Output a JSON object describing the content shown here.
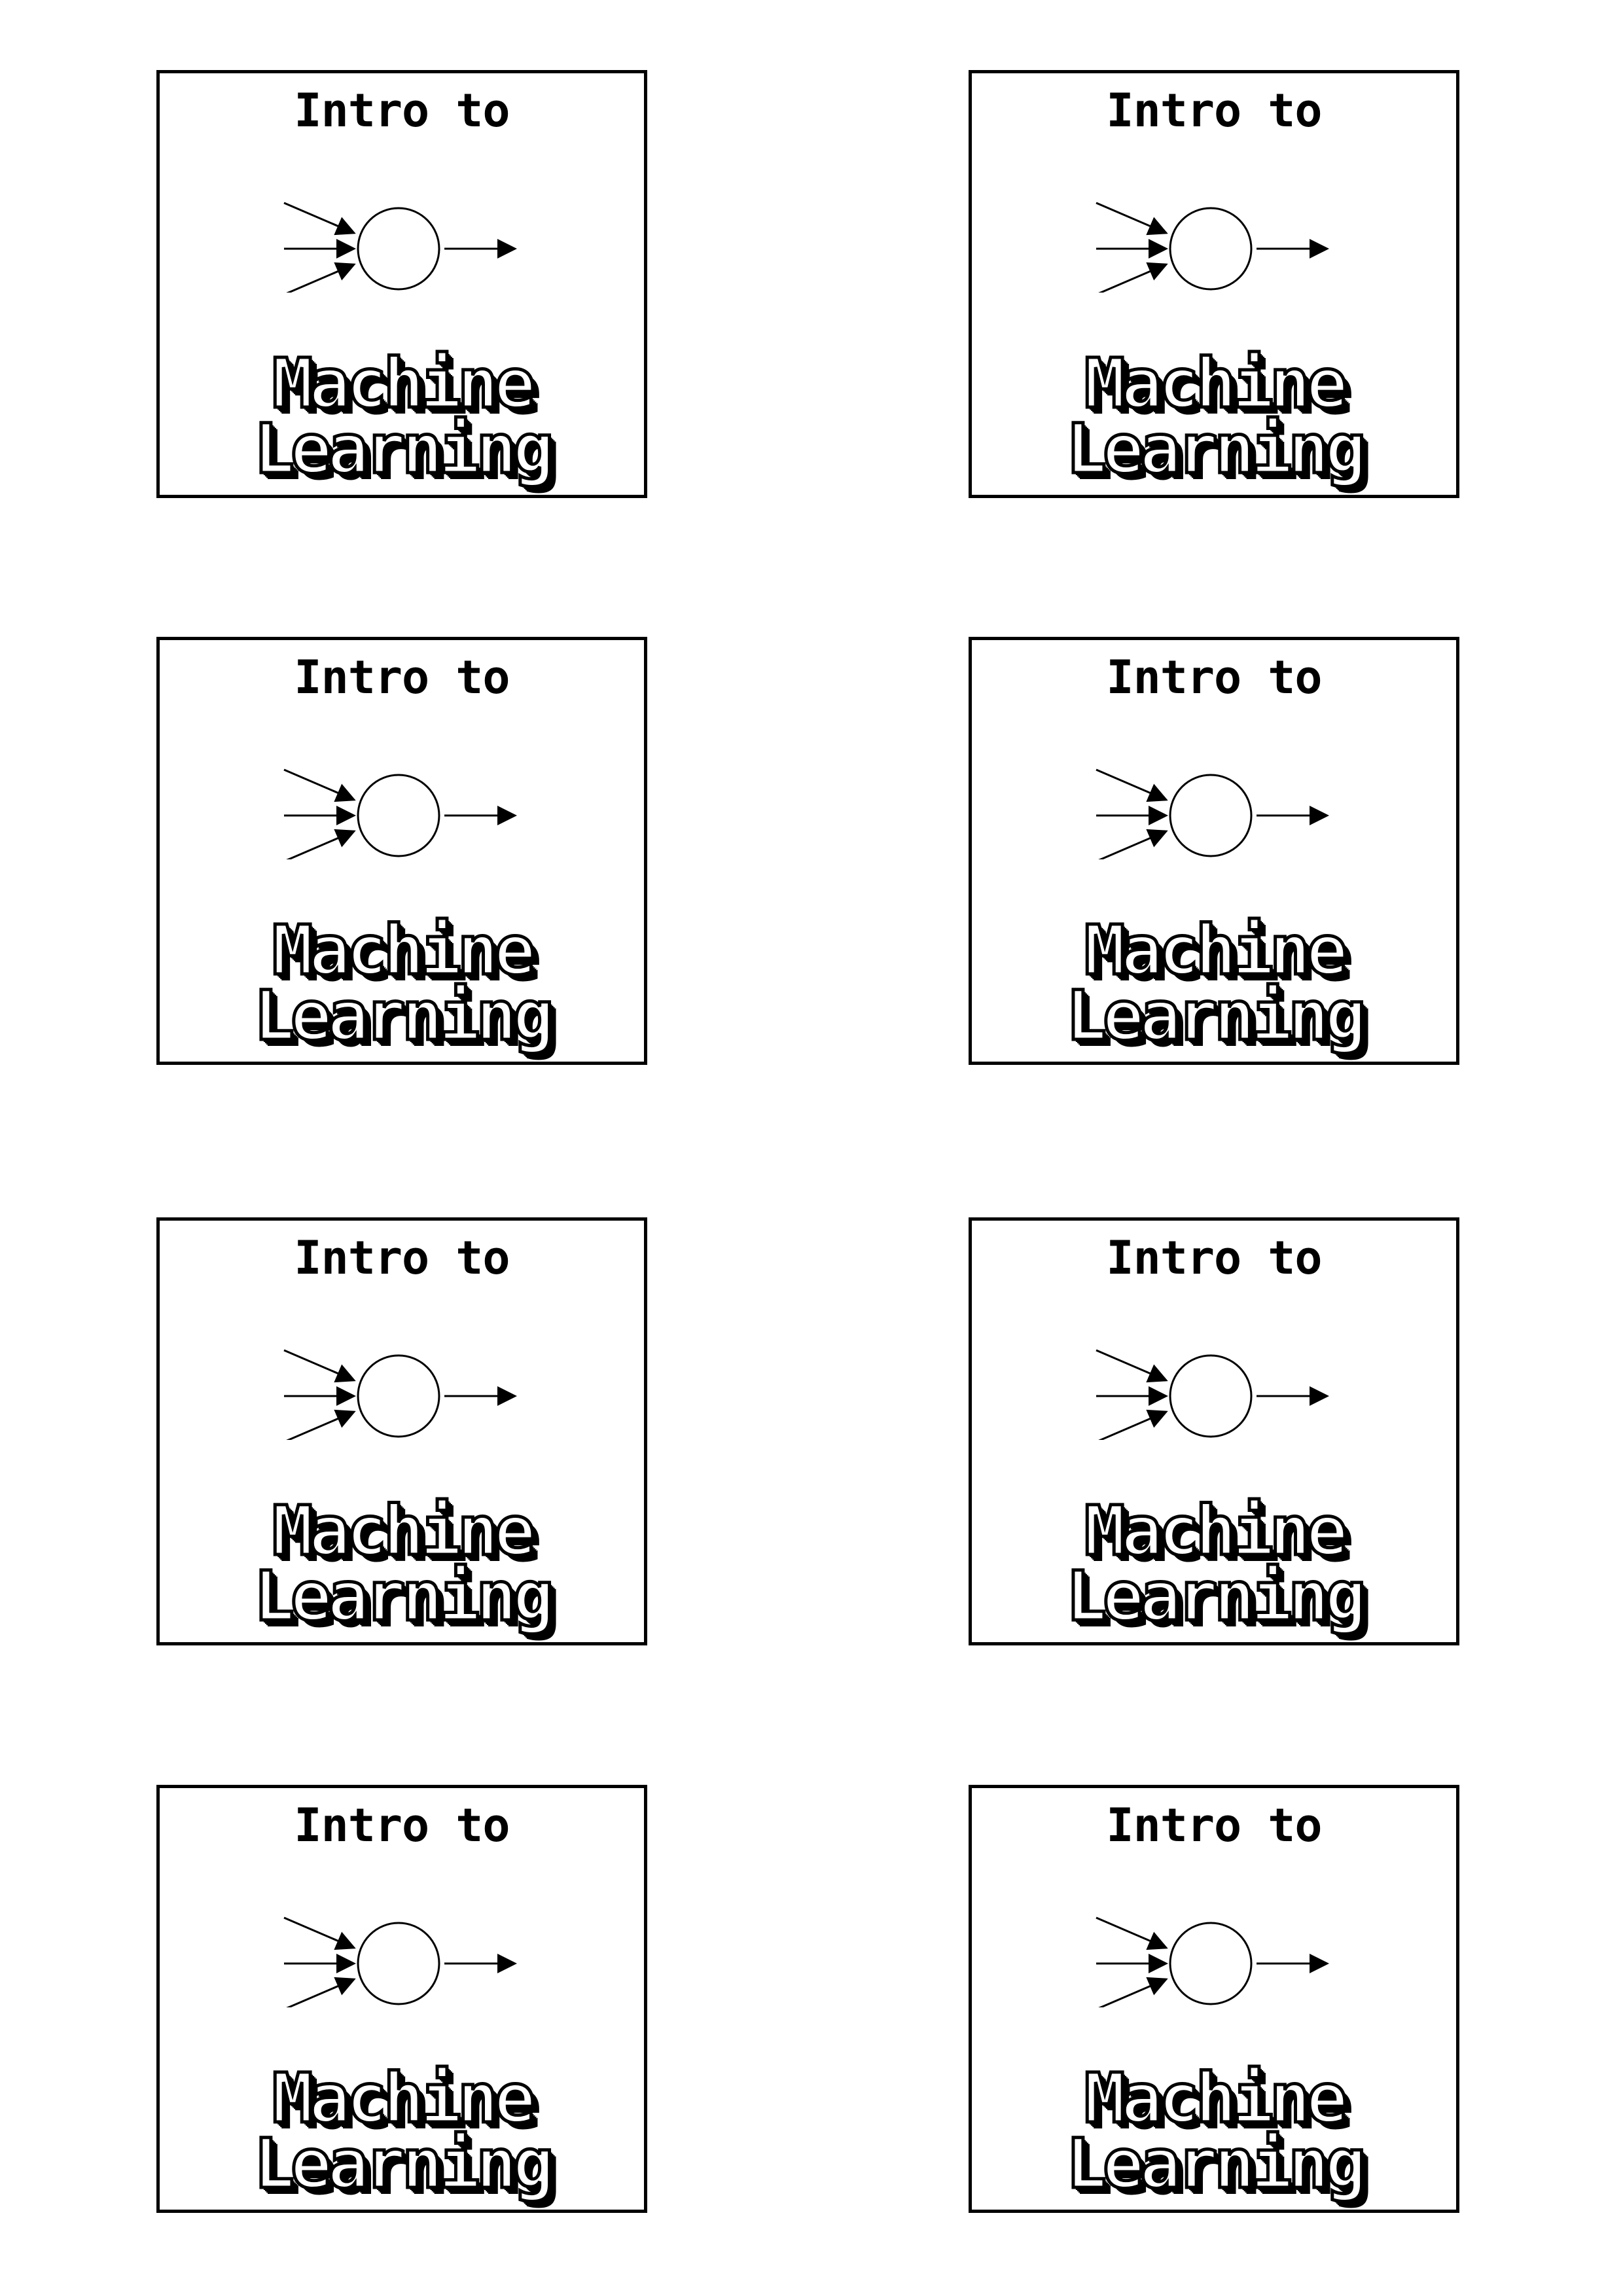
{
  "cards": [
    {
      "intro": "Intro to",
      "title_line1": "Machine",
      "title_line2": "Learning",
      "icon": "neuron-diagram"
    },
    {
      "intro": "Intro to",
      "title_line1": "Machine",
      "title_line2": "Learning",
      "icon": "neuron-diagram"
    },
    {
      "intro": "Intro to",
      "title_line1": "Machine",
      "title_line2": "Learning",
      "icon": "neuron-diagram"
    },
    {
      "intro": "Intro to",
      "title_line1": "Machine",
      "title_line2": "Learning",
      "icon": "neuron-diagram"
    },
    {
      "intro": "Intro to",
      "title_line1": "Machine",
      "title_line2": "Learning",
      "icon": "neuron-diagram"
    },
    {
      "intro": "Intro to",
      "title_line1": "Machine",
      "title_line2": "Learning",
      "icon": "neuron-diagram"
    },
    {
      "intro": "Intro to",
      "title_line1": "Machine",
      "title_line2": "Learning",
      "icon": "neuron-diagram"
    },
    {
      "intro": "Intro to",
      "title_line1": "Machine",
      "title_line2": "Learning",
      "icon": "neuron-diagram"
    }
  ],
  "colors": {
    "ink": "#000000",
    "paper": "#ffffff"
  }
}
